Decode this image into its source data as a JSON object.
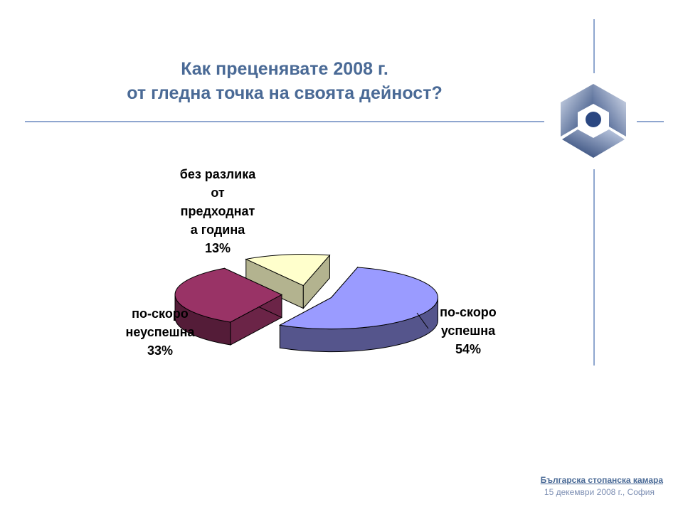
{
  "slide": {
    "title_line1": "Как преценявате 2008 г.",
    "title_line2": "от гледна точка на своята дейност?"
  },
  "footer": {
    "org": "Българска стопанска камара",
    "date": "15 декември 2008 г., София"
  },
  "colors": {
    "accent": "#4a6a96",
    "rule": "#8fa6cf"
  },
  "chart_data": {
    "type": "pie",
    "style": "3d-exploded",
    "title": "",
    "slices": [
      {
        "label": "по-скоро успешна",
        "value": 54,
        "value_label": "54%",
        "color": "#9a9bff"
      },
      {
        "label": "по-скоро неуспешна",
        "value": 33,
        "value_label": "33%",
        "color": "#993366"
      },
      {
        "label": "без разлика от предходната година",
        "value": 13,
        "value_label": "13%",
        "color": "#ffffcc"
      }
    ],
    "legend": "none",
    "labels_outside": true
  }
}
